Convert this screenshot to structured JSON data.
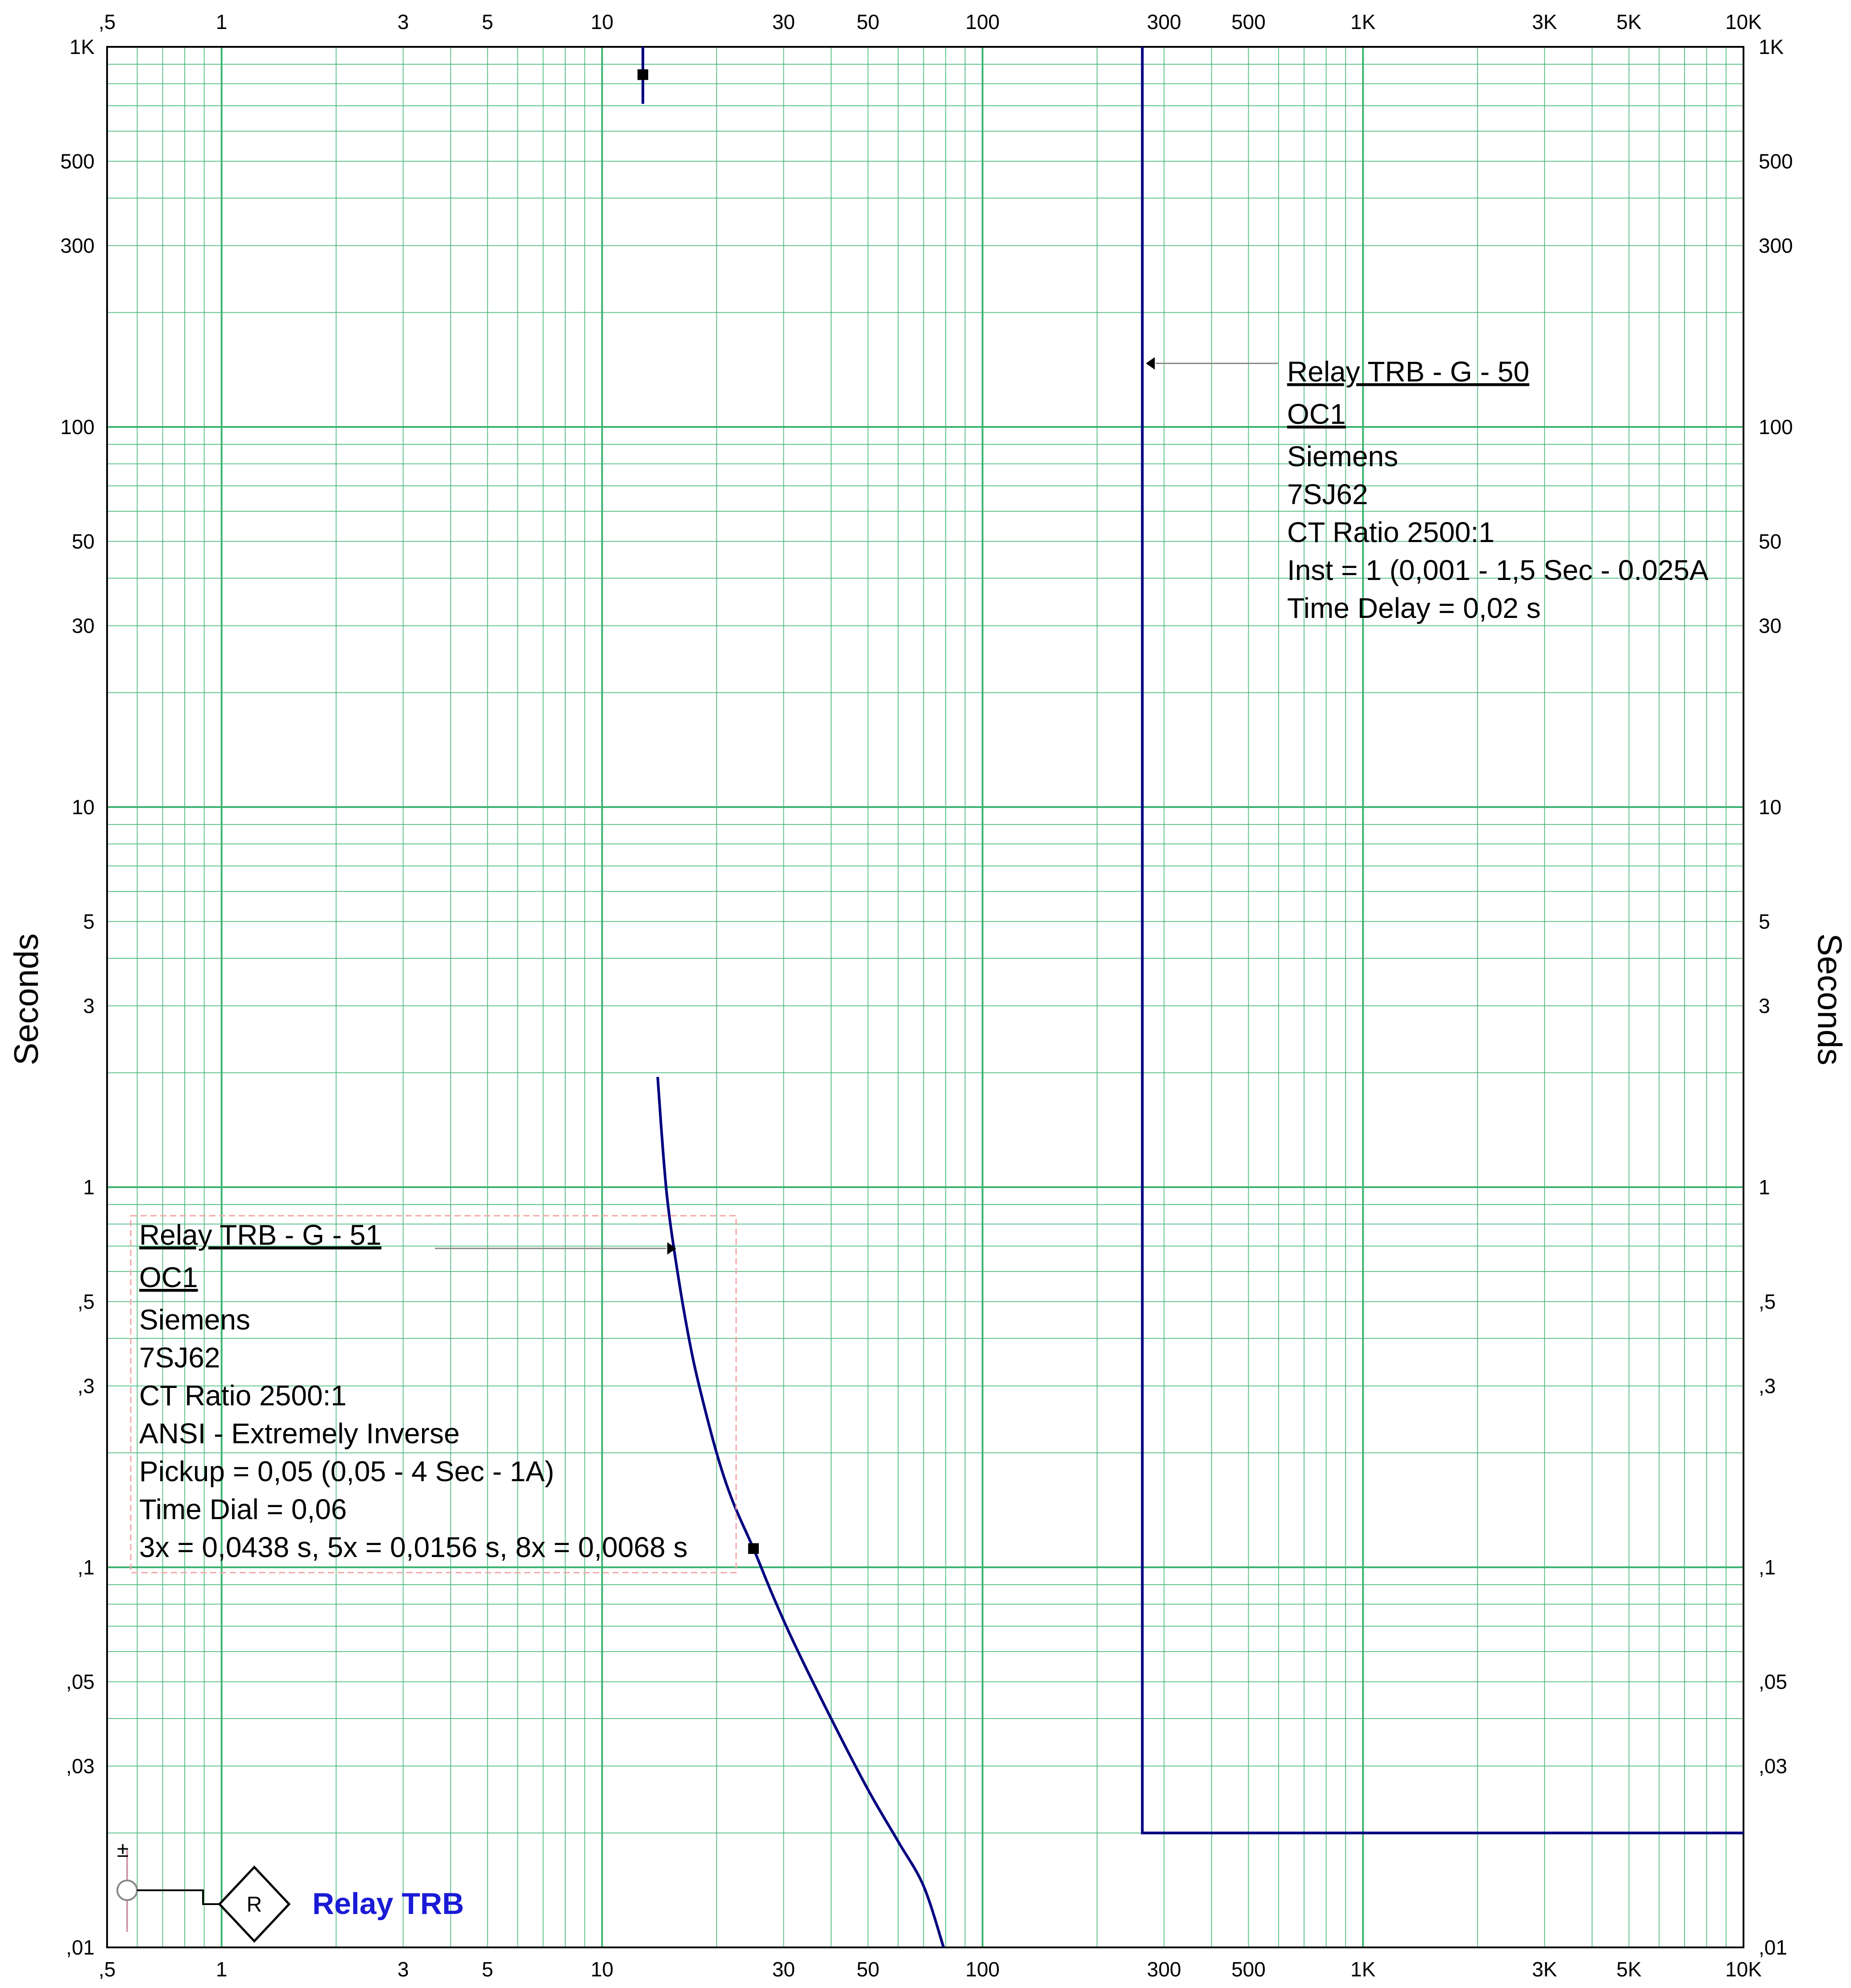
{
  "chart_data": {
    "type": "line",
    "xscale": "log",
    "yscale": "log",
    "xlim": [
      0.5,
      10000
    ],
    "ylim": [
      0.01,
      1000
    ],
    "grid": true,
    "ylabel_left": "Seconds",
    "ylabel_right": "Seconds",
    "x_ticks": [
      0.5,
      1,
      3,
      5,
      10,
      30,
      50,
      100,
      300,
      500,
      1000,
      3000,
      5000,
      10000
    ],
    "x_tick_labels": [
      ",5",
      "1",
      "3",
      "5",
      "10",
      "30",
      "50",
      "100",
      "300",
      "500",
      "1K",
      "3K",
      "5K",
      "10K"
    ],
    "y_ticks": [
      0.01,
      0.03,
      0.05,
      0.1,
      0.3,
      0.5,
      1,
      3,
      5,
      10,
      30,
      50,
      100,
      300,
      500,
      1000
    ],
    "y_tick_labels": [
      ",01",
      ",03",
      ",05",
      ",1",
      ",3",
      ",5",
      "1",
      "3",
      "5",
      "10",
      "30",
      "50",
      "100",
      "300",
      "500",
      "1K"
    ],
    "series": [
      {
        "color": "#000080",
        "x": [
          14.0,
          14.5,
          15,
          16,
          17,
          18,
          20,
          22,
          25,
          28,
          32,
          40,
          50,
          60,
          70,
          79
        ],
        "y": [
          1.95,
          1.2,
          0.85,
          0.55,
          0.39,
          0.3,
          0.2,
          0.15,
          0.112,
          0.085,
          0.063,
          0.04,
          0.026,
          0.019,
          0.0145,
          0.01
        ]
      },
      {
        "color": "#000080",
        "x": [
          263,
          263,
          10000
        ],
        "y": [
          1000,
          0.02,
          0.02
        ]
      },
      {
        "color": "#000080",
        "x": [
          12.8,
          12.8
        ],
        "y": [
          1000,
          708
        ]
      }
    ],
    "markers": [
      {
        "x": 12.8,
        "y": 845
      },
      {
        "x": 25,
        "y": 0.112
      }
    ],
    "annotations": [
      {
        "anchor": {
          "x": 263,
          "y": 147
        },
        "title": "Relay TRB - G - 50",
        "subtitle": "OC1",
        "lines": [
          "Siemens",
          "7SJ62",
          "CT Ratio 2500:1",
          "Inst = 1 (0,001 - 1,5  Sec - 0.025A",
          "Time Delay = 0,02 s"
        ]
      },
      {
        "anchor": {
          "x": 16,
          "y": 0.69
        },
        "title": "Relay TRB - G - 51",
        "subtitle": "OC1",
        "lines": [
          "Siemens",
          "7SJ62",
          "CT Ratio 2500:1",
          "ANSI - Extremely Inverse",
          "Pickup = 0,05 (0,05 - 4  Sec - 1A)",
          "Time Dial = 0,06",
          "3x = 0,0438 s, 5x = 0,0156 s, 8x = 0,0068 s"
        ]
      }
    ],
    "legend": {
      "symbol": "R",
      "label": "Relay TRB",
      "symbol_text": "±",
      "color": "#1a1ad6"
    }
  }
}
